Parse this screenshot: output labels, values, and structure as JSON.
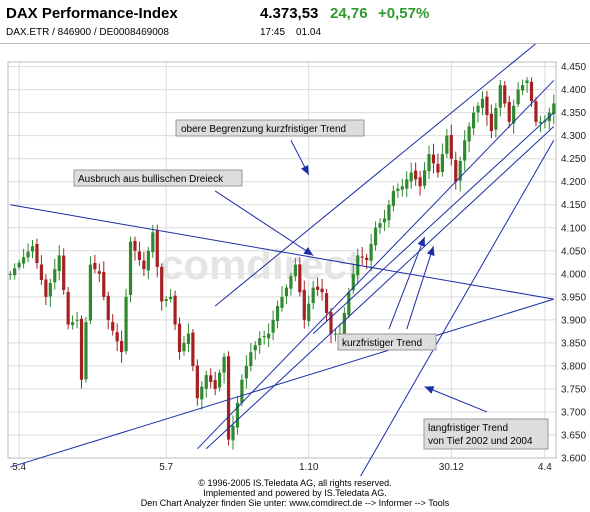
{
  "header": {
    "title": "DAX Performance-Index",
    "price": "4.373,53",
    "change": "24,76",
    "change_pct": "+0,57%",
    "identifiers": "DAX.ETR / 846900 / DE0008469008",
    "time": "17:45",
    "date": "01.04"
  },
  "footer": {
    "line1": "© 1996-2005 IS.Teledata AG, all rights reserved.",
    "line2": "Implemented and powered by IS.Teledata AG.",
    "line3": "Den Chart Analyzer finden Sie unter: www.comdirect.de --> Informer --> Tools"
  },
  "watermark": "comdirect",
  "colors": {
    "candle_down": "#a52020",
    "candle_up": "#2f8a2f",
    "trend_line": "#1a2ea8",
    "label_fill": "#dddddd",
    "grid": "#dcdcdc",
    "change_green": "#2e9a2e"
  },
  "chart_data": {
    "type": "candlestick",
    "instrument": "DAX Performance-Index",
    "x_tick_labels": [
      "5.4",
      "5.7",
      "1.10",
      "30.12",
      "4.4"
    ],
    "y_ticks": [
      3600,
      3650,
      3700,
      3750,
      3800,
      3850,
      3900,
      3950,
      4000,
      4050,
      4100,
      4150,
      4200,
      4250,
      4300,
      4350,
      4400,
      4450
    ],
    "y_tick_labels": [
      "3.600",
      "3.650",
      "3.700",
      "3.750",
      "3.800",
      "3.850",
      "3.900",
      "3.950",
      "4.000",
      "4.050",
      "4.100",
      "4.150",
      "4.200",
      "4.250",
      "4.300",
      "4.350",
      "4.400",
      "4.450"
    ],
    "ylim": [
      3600,
      4460
    ],
    "y_axis_position": "right",
    "grid": true,
    "close_path": [
      [
        0,
        4000
      ],
      [
        5,
        4060
      ],
      [
        8,
        3950
      ],
      [
        11,
        4040
      ],
      [
        13,
        3890
      ],
      [
        15,
        3900
      ],
      [
        16,
        3770
      ],
      [
        18,
        4020
      ],
      [
        20,
        4000
      ],
      [
        22,
        3900
      ],
      [
        25,
        3830
      ],
      [
        27,
        4070
      ],
      [
        30,
        4010
      ],
      [
        32,
        4090
      ],
      [
        34,
        3940
      ],
      [
        36,
        3950
      ],
      [
        38,
        3830
      ],
      [
        40,
        3870
      ],
      [
        42,
        3730
      ],
      [
        44,
        3780
      ],
      [
        46,
        3750
      ],
      [
        48,
        3820
      ],
      [
        49,
        3640
      ],
      [
        50,
        3670
      ],
      [
        52,
        3770
      ],
      [
        54,
        3830
      ],
      [
        56,
        3860
      ],
      [
        58,
        3870
      ],
      [
        60,
        3930
      ],
      [
        62,
        3970
      ],
      [
        64,
        4020
      ],
      [
        66,
        3900
      ],
      [
        68,
        3970
      ],
      [
        70,
        3960
      ],
      [
        72,
        3870
      ],
      [
        74,
        3870
      ],
      [
        76,
        3960
      ],
      [
        78,
        4040
      ],
      [
        80,
        4030
      ],
      [
        82,
        4100
      ],
      [
        84,
        4120
      ],
      [
        86,
        4180
      ],
      [
        88,
        4190
      ],
      [
        90,
        4220
      ],
      [
        92,
        4190
      ],
      [
        94,
        4260
      ],
      [
        96,
        4220
      ],
      [
        98,
        4300
      ],
      [
        100,
        4200
      ],
      [
        102,
        4290
      ],
      [
        104,
        4350
      ],
      [
        106,
        4380
      ],
      [
        108,
        4310
      ],
      [
        110,
        4410
      ],
      [
        112,
        4330
      ],
      [
        114,
        4400
      ],
      [
        116,
        4420
      ],
      [
        118,
        4330
      ],
      [
        120,
        4330
      ],
      [
        122,
        4370
      ]
    ],
    "annotations": [
      "obere Begrenzung kurzfristiger Trend",
      "Ausbruch aus bullischen Dreieck",
      "kurzfristiger Trend",
      "langfristiger Trend",
      "von Tief 2002 und 2004"
    ],
    "trend_lines": [
      {
        "from": [
          0,
          4150
        ],
        "to": [
          122,
          3945
        ]
      },
      {
        "from": [
          0,
          3580
        ],
        "to": [
          122,
          3945
        ]
      },
      {
        "from": [
          44,
          3620
        ],
        "to": [
          122,
          4320
        ]
      },
      {
        "from": [
          42,
          3620
        ],
        "to": [
          122,
          4420
        ]
      },
      {
        "from": [
          46,
          3930
        ],
        "to": [
          118,
          4500
        ]
      },
      {
        "from": [
          68,
          3870
        ],
        "to": [
          122,
          4350
        ]
      },
      {
        "from": [
          78,
          3550
        ],
        "to": [
          122,
          4290
        ]
      }
    ],
    "arrows": [
      {
        "from": [
          63,
          4290
        ],
        "to": [
          67,
          4215
        ]
      },
      {
        "from": [
          46,
          4180
        ],
        "to": [
          68,
          4040
        ]
      },
      {
        "from": [
          85,
          3880
        ],
        "to": [
          93,
          4080
        ]
      },
      {
        "from": [
          89,
          3880
        ],
        "to": [
          95,
          4060
        ]
      },
      {
        "from": [
          107,
          3700
        ],
        "to": [
          93,
          3755
        ]
      }
    ]
  }
}
